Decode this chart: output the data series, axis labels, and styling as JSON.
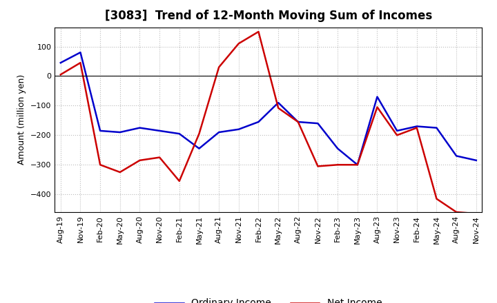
{
  "title": "[3083]  Trend of 12-Month Moving Sum of Incomes",
  "ylabel": "Amount (million yen)",
  "labels": [
    "Aug-19",
    "Nov-19",
    "Feb-20",
    "May-20",
    "Aug-20",
    "Nov-20",
    "Feb-21",
    "May-21",
    "Aug-21",
    "Nov-21",
    "Feb-22",
    "May-22",
    "Aug-22",
    "Nov-22",
    "Feb-23",
    "May-23",
    "Aug-23",
    "Nov-23",
    "Feb-24",
    "May-24",
    "Aug-24",
    "Nov-24"
  ],
  "ordinary_income": [
    45,
    80,
    -185,
    -190,
    -175,
    -185,
    -195,
    -245,
    -190,
    -180,
    -155,
    -90,
    -155,
    -160,
    -245,
    -300,
    -70,
    -185,
    -170,
    -175,
    -270,
    -285
  ],
  "net_income": [
    5,
    45,
    -300,
    -325,
    -285,
    -275,
    -355,
    -195,
    30,
    110,
    150,
    -108,
    -155,
    -305,
    -300,
    -300,
    -105,
    -200,
    -175,
    -415,
    -460,
    -465
  ],
  "ordinary_color": "#0000cc",
  "net_color": "#cc0000",
  "ylim_min": -460,
  "ylim_max": 165,
  "yticks": [
    -400,
    -300,
    -200,
    -100,
    0,
    100
  ],
  "background_color": "#ffffff",
  "grid_color": "#bbbbbb",
  "title_fontsize": 12,
  "axis_fontsize": 9,
  "tick_fontsize": 8,
  "legend_fontsize": 10,
  "linewidth": 1.8
}
